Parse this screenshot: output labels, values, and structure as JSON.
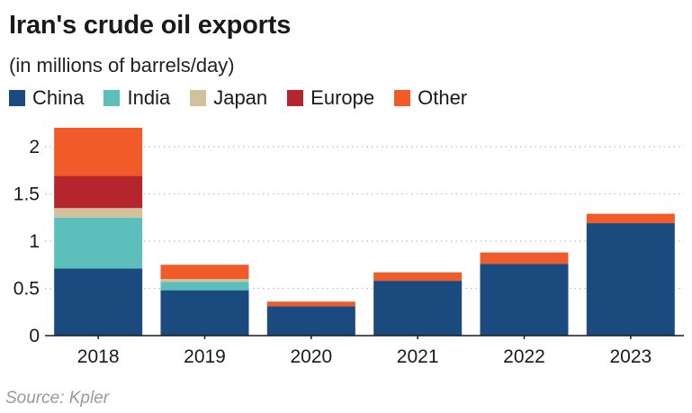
{
  "title": "Iran's crude oil exports",
  "subtitle": "(in millions of barrels/day)",
  "source": "Source: Kpler",
  "chart_data": {
    "type": "bar",
    "stacked": true,
    "title": "Iran's crude oil exports",
    "subtitle": "(in millions of barrels/day)",
    "xlabel": "",
    "ylabel": "",
    "ylim": [
      0,
      2.2
    ],
    "yticks": [
      0,
      0.5,
      1,
      1.5,
      2
    ],
    "ytick_labels": [
      "0",
      "0.5",
      "1",
      "1.5",
      "2"
    ],
    "grid": true,
    "legend": "top",
    "categories": [
      "2018",
      "2019",
      "2020",
      "2021",
      "2022",
      "2023"
    ],
    "series": [
      {
        "name": "China",
        "color": "#1b4a7f",
        "values": [
          0.71,
          0.48,
          0.31,
          0.58,
          0.76,
          1.19
        ]
      },
      {
        "name": "India",
        "color": "#5cbfbb",
        "values": [
          0.54,
          0.09,
          0.0,
          0.0,
          0.0,
          0.0
        ]
      },
      {
        "name": "Japan",
        "color": "#d3c19c",
        "values": [
          0.1,
          0.03,
          0.0,
          0.0,
          0.0,
          0.0
        ]
      },
      {
        "name": "Europe",
        "color": "#b5252e",
        "values": [
          0.34,
          0.0,
          0.0,
          0.0,
          0.0,
          0.0
        ]
      },
      {
        "name": "Other",
        "color": "#f15a29",
        "values": [
          0.51,
          0.15,
          0.05,
          0.09,
          0.12,
          0.1
        ]
      }
    ]
  }
}
